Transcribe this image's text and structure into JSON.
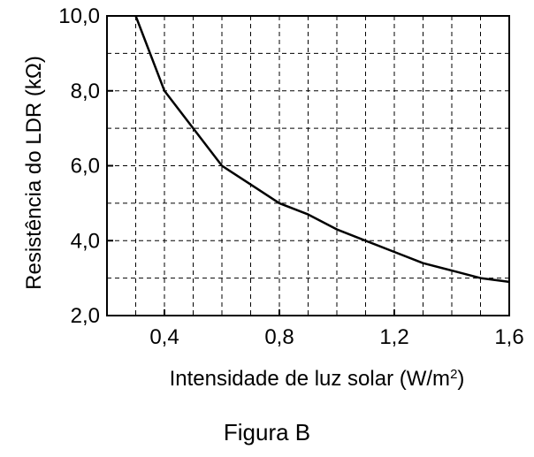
{
  "chart_data": {
    "type": "line",
    "x": [
      0.3,
      0.4,
      0.5,
      0.6,
      0.7,
      0.8,
      0.9,
      1.0,
      1.1,
      1.2,
      1.3,
      1.4,
      1.5,
      1.6
    ],
    "series": [
      {
        "values": [
          10.0,
          8.0,
          7.0,
          6.0,
          5.5,
          5.0,
          4.7,
          4.3,
          4.0,
          3.7,
          3.4,
          3.2,
          3.0,
          2.9
        ]
      }
    ],
    "xlim": [
      0.2,
      1.6
    ],
    "ylim": [
      2.0,
      10.0
    ],
    "xticks": [
      0.4,
      0.8,
      1.2,
      1.6
    ],
    "yticks": [
      2.0,
      4.0,
      6.0,
      8.0,
      10.0
    ],
    "xtick_labels": [
      "0,4",
      "0,8",
      "1,2",
      "1,6"
    ],
    "ytick_labels": [
      "2,0",
      "4,0",
      "6,0",
      "8,0",
      "10,0"
    ],
    "xlabel": "Intensidade de luz solar (W/m",
    "xlabel_sup": "2",
    "xlabel_end": ")",
    "ylabel": "Resistência do LDR (kΩ)",
    "grid": true,
    "grid_style": "dashed",
    "line_color": "#000000"
  },
  "caption": "Figura B"
}
